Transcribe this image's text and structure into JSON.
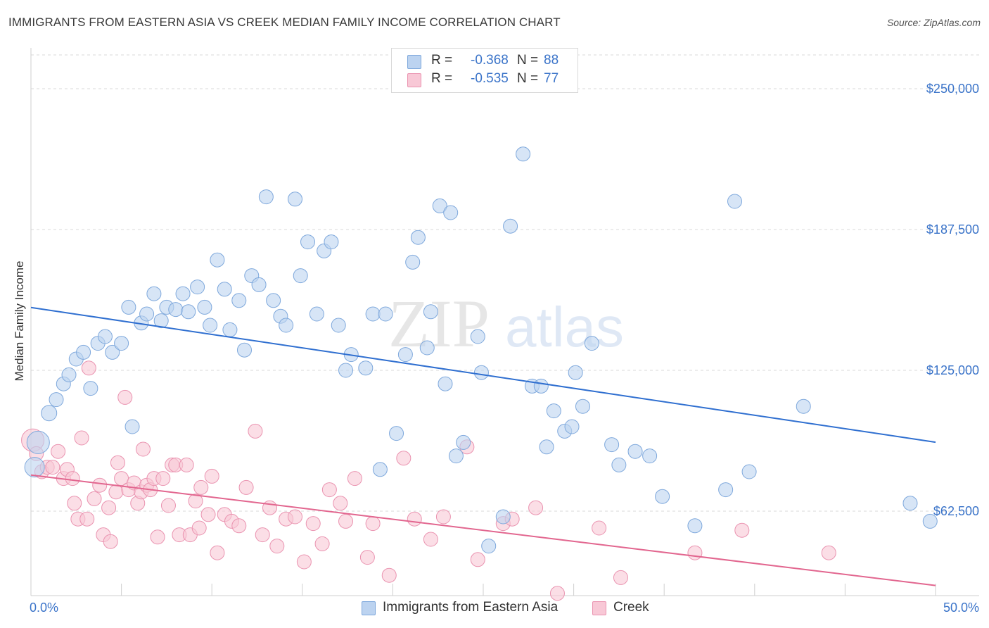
{
  "title": "IMMIGRANTS FROM EASTERN ASIA VS CREEK MEDIAN FAMILY INCOME CORRELATION CHART",
  "source": "Source: ZipAtlas.com",
  "watermark": {
    "zip": "ZIP",
    "atlas": "atlas"
  },
  "legend": {
    "r_label": "R =",
    "n_label": "N =",
    "series": [
      {
        "r": "-0.368",
        "n": "88"
      },
      {
        "r": "-0.535",
        "n": "77"
      }
    ]
  },
  "colors": {
    "blue_fill": "#bcd3f0",
    "blue_stroke": "#7ea8dc",
    "blue_line": "#2f6fd0",
    "pink_fill": "#f8c8d6",
    "pink_stroke": "#ea93b0",
    "pink_line": "#e2668f",
    "axis_text": "#3b74c9",
    "grid": "#d9d9d9"
  },
  "chart_data": {
    "type": "scatter",
    "title": "IMMIGRANTS FROM EASTERN ASIA VS CREEK MEDIAN FAMILY INCOME CORRELATION CHART",
    "xlabel": "",
    "ylabel": "Median Family Income",
    "xlim": [
      0,
      50
    ],
    "ylim": [
      25000,
      265000
    ],
    "x_tick_labels": [
      "0.0%",
      "50.0%"
    ],
    "y_ticks": [
      62500,
      125000,
      187500,
      250000
    ],
    "y_tick_labels": [
      "$62,500",
      "$125,000",
      "$187,500",
      "$250,000"
    ],
    "series": [
      {
        "name": "Immigrants from Eastern Asia",
        "color": "blue",
        "trend": {
          "x": [
            0,
            50
          ],
          "y": [
            152900,
            93100
          ]
        },
        "points": [
          [
            0.4,
            93000,
            16
          ],
          [
            0.2,
            82000,
            14
          ],
          [
            1.0,
            106000,
            11
          ],
          [
            1.4,
            112000,
            10
          ],
          [
            1.8,
            119000,
            10
          ],
          [
            2.1,
            123000,
            10
          ],
          [
            2.5,
            130000,
            10
          ],
          [
            2.9,
            133000,
            10
          ],
          [
            3.3,
            117000,
            10
          ],
          [
            3.7,
            137000,
            10
          ],
          [
            4.1,
            140000,
            10
          ],
          [
            4.5,
            133000,
            10
          ],
          [
            5.0,
            137000,
            10
          ],
          [
            5.4,
            153000,
            10
          ],
          [
            5.6,
            100000,
            10
          ],
          [
            6.1,
            146000,
            10
          ],
          [
            6.4,
            150000,
            10
          ],
          [
            6.8,
            159000,
            10
          ],
          [
            7.2,
            147000,
            10
          ],
          [
            7.5,
            153000,
            10
          ],
          [
            8.0,
            152000,
            10
          ],
          [
            8.4,
            159000,
            10
          ],
          [
            8.7,
            151000,
            10
          ],
          [
            9.2,
            162000,
            10
          ],
          [
            9.6,
            153000,
            10
          ],
          [
            9.9,
            145000,
            10
          ],
          [
            10.3,
            174000,
            10
          ],
          [
            10.7,
            161000,
            10
          ],
          [
            11.0,
            143000,
            10
          ],
          [
            11.5,
            156000,
            10
          ],
          [
            11.8,
            134000,
            10
          ],
          [
            12.2,
            167000,
            10
          ],
          [
            12.6,
            163000,
            10
          ],
          [
            13.0,
            202000,
            10
          ],
          [
            13.4,
            156000,
            10
          ],
          [
            13.8,
            149000,
            10
          ],
          [
            14.1,
            145000,
            10
          ],
          [
            14.6,
            201000,
            10
          ],
          [
            14.9,
            167000,
            10
          ],
          [
            15.3,
            182000,
            10
          ],
          [
            15.8,
            150000,
            10
          ],
          [
            16.2,
            178000,
            10
          ],
          [
            16.6,
            182000,
            10
          ],
          [
            17.0,
            145000,
            10
          ],
          [
            17.4,
            125000,
            10
          ],
          [
            17.7,
            132000,
            10
          ],
          [
            18.5,
            126000,
            10
          ],
          [
            18.9,
            150000,
            10
          ],
          [
            19.3,
            81000,
            10
          ],
          [
            19.6,
            150000,
            10
          ],
          [
            20.2,
            97000,
            10
          ],
          [
            20.7,
            132000,
            10
          ],
          [
            21.1,
            173000,
            10
          ],
          [
            21.4,
            184000,
            10
          ],
          [
            21.9,
            135000,
            10
          ],
          [
            22.1,
            151000,
            10
          ],
          [
            22.6,
            198000,
            10
          ],
          [
            22.9,
            119000,
            10
          ],
          [
            23.2,
            195000,
            10
          ],
          [
            23.5,
            87000,
            10
          ],
          [
            23.9,
            93000,
            10
          ],
          [
            24.7,
            140000,
            10
          ],
          [
            24.9,
            124000,
            10
          ],
          [
            25.3,
            47000,
            10
          ],
          [
            26.1,
            60000,
            10
          ],
          [
            26.5,
            189000,
            10
          ],
          [
            27.2,
            221000,
            10
          ],
          [
            27.7,
            118000,
            10
          ],
          [
            28.2,
            118000,
            10
          ],
          [
            28.5,
            91000,
            10
          ],
          [
            28.9,
            107000,
            10
          ],
          [
            29.5,
            98000,
            10
          ],
          [
            29.9,
            100000,
            10
          ],
          [
            30.1,
            124000,
            10
          ],
          [
            30.5,
            109000,
            10
          ],
          [
            31.0,
            137000,
            10
          ],
          [
            32.1,
            92000,
            10
          ],
          [
            32.5,
            83000,
            10
          ],
          [
            33.4,
            89000,
            10
          ],
          [
            34.2,
            87000,
            10
          ],
          [
            34.9,
            69000,
            10
          ],
          [
            36.7,
            56000,
            10
          ],
          [
            38.4,
            72000,
            10
          ],
          [
            38.9,
            200000,
            10
          ],
          [
            39.7,
            80000,
            10
          ],
          [
            42.7,
            109000,
            10
          ],
          [
            48.6,
            66000,
            10
          ],
          [
            49.7,
            58000,
            10
          ]
        ]
      },
      {
        "name": "Creek",
        "color": "pink",
        "trend": {
          "x": [
            0,
            50
          ],
          "y": [
            78500,
            29500
          ]
        },
        "points": [
          [
            0.1,
            94000,
            16
          ],
          [
            0.3,
            88000,
            10
          ],
          [
            0.6,
            80000,
            10
          ],
          [
            0.9,
            82000,
            10
          ],
          [
            1.2,
            82000,
            10
          ],
          [
            1.5,
            89000,
            10
          ],
          [
            1.8,
            77000,
            10
          ],
          [
            2.0,
            81000,
            10
          ],
          [
            2.3,
            77000,
            10
          ],
          [
            2.4,
            66000,
            10
          ],
          [
            2.6,
            59000,
            10
          ],
          [
            2.8,
            95000,
            10
          ],
          [
            3.1,
            59000,
            10
          ],
          [
            3.2,
            126000,
            10
          ],
          [
            3.5,
            68000,
            10
          ],
          [
            3.8,
            74000,
            10
          ],
          [
            4.0,
            52000,
            10
          ],
          [
            4.3,
            64000,
            10
          ],
          [
            4.4,
            49000,
            10
          ],
          [
            4.7,
            71000,
            10
          ],
          [
            4.8,
            84000,
            10
          ],
          [
            5.0,
            77000,
            10
          ],
          [
            5.2,
            113000,
            10
          ],
          [
            5.4,
            72000,
            10
          ],
          [
            5.7,
            75000,
            10
          ],
          [
            5.9,
            66000,
            10
          ],
          [
            6.1,
            71000,
            10
          ],
          [
            6.2,
            90000,
            10
          ],
          [
            6.4,
            74000,
            10
          ],
          [
            6.6,
            72000,
            10
          ],
          [
            6.8,
            77000,
            10
          ],
          [
            7.0,
            51000,
            10
          ],
          [
            7.3,
            77000,
            10
          ],
          [
            7.6,
            65000,
            10
          ],
          [
            7.8,
            83000,
            10
          ],
          [
            8.0,
            83000,
            10
          ],
          [
            8.2,
            52000,
            10
          ],
          [
            8.6,
            83000,
            10
          ],
          [
            8.8,
            52000,
            10
          ],
          [
            9.1,
            67000,
            10
          ],
          [
            9.3,
            55000,
            10
          ],
          [
            9.4,
            73000,
            10
          ],
          [
            9.8,
            61000,
            10
          ],
          [
            10.0,
            78000,
            10
          ],
          [
            10.3,
            44000,
            10
          ],
          [
            10.7,
            61000,
            10
          ],
          [
            11.1,
            58000,
            10
          ],
          [
            11.5,
            56000,
            10
          ],
          [
            11.9,
            73000,
            10
          ],
          [
            12.4,
            98000,
            10
          ],
          [
            12.8,
            52000,
            10
          ],
          [
            13.2,
            64000,
            10
          ],
          [
            13.6,
            47000,
            10
          ],
          [
            14.1,
            59000,
            10
          ],
          [
            14.6,
            60000,
            10
          ],
          [
            15.1,
            40000,
            10
          ],
          [
            15.6,
            57000,
            10
          ],
          [
            16.1,
            48000,
            10
          ],
          [
            16.5,
            72000,
            10
          ],
          [
            17.1,
            66000,
            10
          ],
          [
            17.4,
            58000,
            10
          ],
          [
            17.9,
            77000,
            10
          ],
          [
            18.6,
            42000,
            10
          ],
          [
            18.9,
            57000,
            10
          ],
          [
            19.8,
            34000,
            10
          ],
          [
            20.6,
            86000,
            10
          ],
          [
            21.2,
            59000,
            10
          ],
          [
            22.1,
            50000,
            10
          ],
          [
            22.8,
            60000,
            10
          ],
          [
            24.1,
            91000,
            10
          ],
          [
            24.7,
            41000,
            10
          ],
          [
            26.1,
            57000,
            10
          ],
          [
            26.6,
            59000,
            10
          ],
          [
            27.9,
            64000,
            10
          ],
          [
            29.1,
            26000,
            10
          ],
          [
            31.4,
            55000,
            10
          ],
          [
            32.6,
            33000,
            10
          ],
          [
            36.7,
            44000,
            10
          ],
          [
            39.3,
            54000,
            10
          ],
          [
            44.1,
            44000,
            10
          ]
        ]
      }
    ],
    "legend": [
      "Immigrants from Eastern Asia",
      "Creek"
    ]
  }
}
